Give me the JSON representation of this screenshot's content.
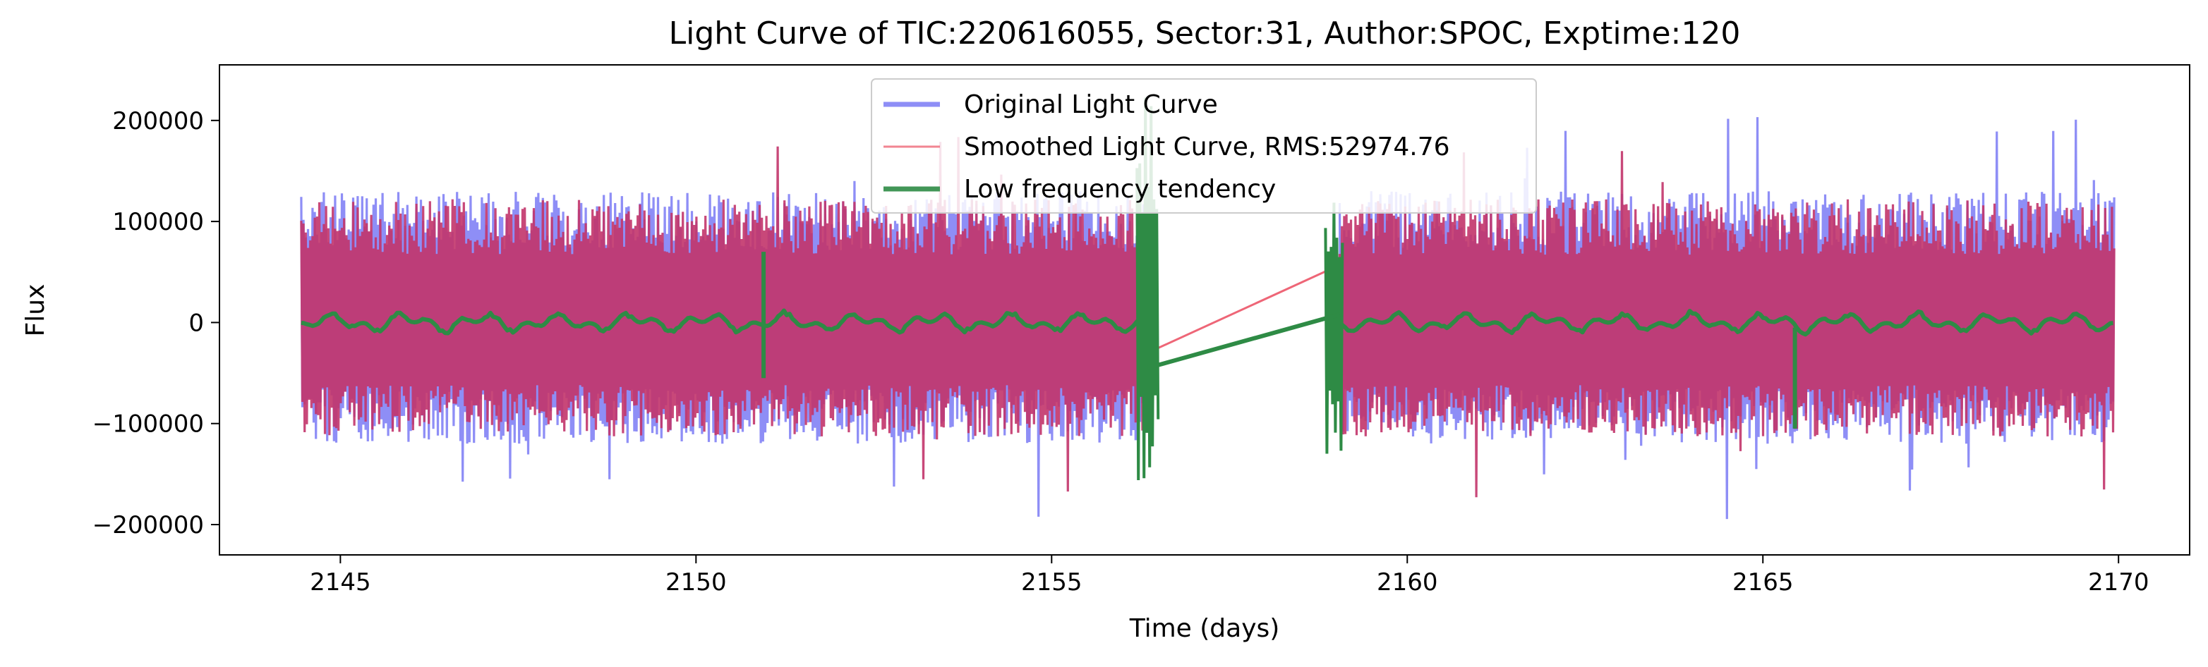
{
  "chart_data": {
    "type": "line",
    "title": "Light Curve of TIC:220616055, Sector:31, Author:SPOC, Exptime:120",
    "xlabel": "Time (days)",
    "ylabel": "Flux",
    "xlim": [
      2143.3,
      2171.0
    ],
    "ylim": [
      -230000,
      255000
    ],
    "xticks": [
      2145,
      2150,
      2155,
      2160,
      2165,
      2170
    ],
    "xtick_labels": [
      "2145",
      "2150",
      "2155",
      "2160",
      "2165",
      "2170"
    ],
    "yticks": [
      -200000,
      -100000,
      0,
      100000,
      200000
    ],
    "ytick_labels": [
      "−200000",
      "−100000",
      "0",
      "100000",
      "200000"
    ],
    "grid": false,
    "legend_position": "top-center",
    "segments": [
      [
        2144.45,
        2156.35
      ],
      [
        2159.05,
        2169.95
      ]
    ],
    "gap": [
      2156.35,
      2159.05
    ],
    "series": [
      {
        "name": "Original Light Curve",
        "color": "#7a7af5",
        "noise_envelope": [
          -120000,
          130000
        ],
        "peak_max": 218000,
        "peak_min": -195000
      },
      {
        "name": "Smoothed Light Curve, RMS:52974.76",
        "color": "#ee6677",
        "rms": 52974.76,
        "gap_bridge": {
          "x": [
            2156.35,
            2159.05
          ],
          "y": [
            -30000,
            57000
          ]
        }
      },
      {
        "name": "Low frequency tendency",
        "color": "#2e8b45",
        "baseline": 0,
        "wiggle_amplitude": 12000,
        "spikes": [
          {
            "x": 2150.95,
            "y_min": -55000,
            "y_max": 70000
          },
          {
            "x": 2165.45,
            "y_min": -105000,
            "y_max": -5000
          }
        ],
        "edge_bursts": [
          {
            "x_start": 2156.2,
            "x_end": 2156.5,
            "y_min": -160000,
            "y_max": 235000
          },
          {
            "x_start": 2158.85,
            "x_end": 2159.1,
            "y_min": -140000,
            "y_max": 120000
          }
        ],
        "gap_bridge": {
          "x": [
            2156.35,
            2159.05
          ],
          "y": [
            -45000,
            8000
          ]
        }
      }
    ]
  }
}
